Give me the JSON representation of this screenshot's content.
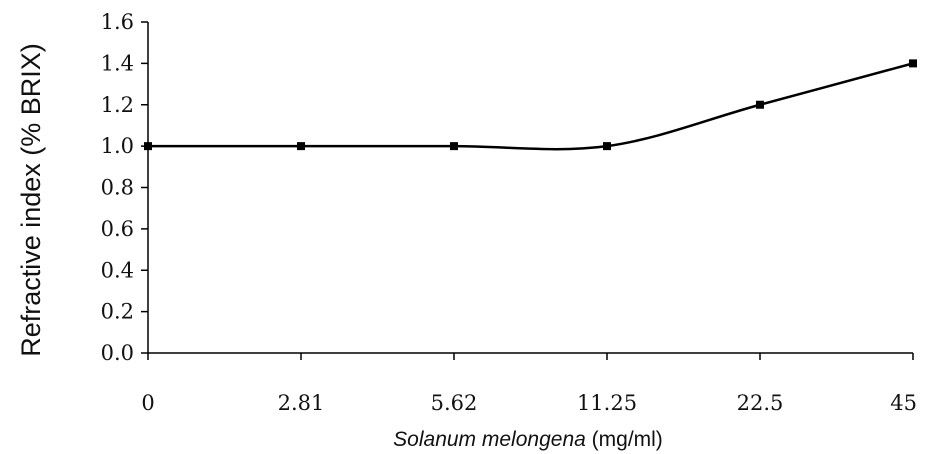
{
  "chart_data": {
    "type": "line",
    "categories": [
      "0",
      "2.81",
      "5.62",
      "11.25",
      "22.5",
      "45"
    ],
    "series": [
      {
        "values": [
          1.0,
          1.0,
          1.0,
          1.0,
          1.2,
          1.4
        ]
      }
    ],
    "ylim": [
      0,
      1.6
    ],
    "yticks": [
      "0.0",
      "0.2",
      "0.4",
      "0.6",
      "0.8",
      "1.0",
      "1.2",
      "1.4",
      "1.6"
    ],
    "ylabel": "Refractive index (% BRIX)",
    "xlabel_italic": "Solanum melongena",
    "xlabel_rest": " (mg/ml)",
    "grid": false,
    "legend": "none",
    "smoothed": true,
    "line_color": "#000000"
  }
}
